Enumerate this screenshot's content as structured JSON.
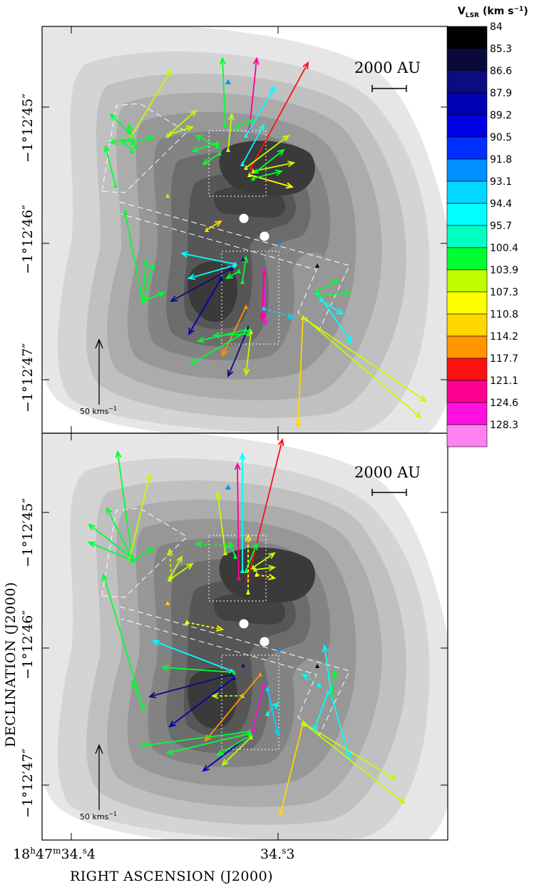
{
  "chart_data": {
    "type": "scatter",
    "description_type": "maser proper-motion vector map over grayscale dust continuum, two panels",
    "xlabel": "RIGHT ASCENSION (J2000)",
    "ylabel": "DECLINATION (J2000)",
    "x_ticks": [
      {
        "label": "18h47m34.4s",
        "main": "18",
        "sup1": "h",
        "mid": "47",
        "sup2": "m",
        "mid2": "34.",
        "sup3": "s",
        "end": "4",
        "value": 34.4
      },
      {
        "label": "34.3s",
        "main": "34.",
        "sup": "s",
        "end": "3",
        "value": 34.3
      }
    ],
    "y_ticks": [
      "−1°12′45″",
      "−1°12′46″",
      "−1°12′47″"
    ],
    "scale_bar_label": "2000 AU",
    "velocity_scale_label": "50 kms",
    "velocity_scale_sup": "−1",
    "colorbar": {
      "title": "V",
      "title_sub": "LSR",
      "title_units": "(km s",
      "title_units_sup": "−1",
      "title_units_end": ")",
      "levels": [
        "84",
        "85.3",
        "86.6",
        "87.9",
        "89.2",
        "90.5",
        "91.8",
        "93.1",
        "94.4",
        "95.7",
        "100.4",
        "103.9",
        "107.3",
        "110.8",
        "114.2",
        "117.7",
        "121.1",
        "124.6",
        "128.3"
      ],
      "colors": [
        "#000000",
        "#0a0a3a",
        "#0c0c80",
        "#0000b4",
        "#0000e6",
        "#0030ff",
        "#0090ff",
        "#00d8ff",
        "#00ffff",
        "#00ffc0",
        "#00ff30",
        "#bfff00",
        "#ffff00",
        "#ffd700",
        "#ff9600",
        "#ff1010",
        "#ff0090",
        "#ff10e0",
        "#ff80f0"
      ]
    },
    "panels": [
      {
        "name": "top",
        "vectors": [
          {
            "x0": 316,
            "y0": 175,
            "x1": 312,
            "y1": 82,
            "c": "#00ff30"
          },
          {
            "x0": 350,
            "y0": 180,
            "x1": 360,
            "y1": 82,
            "c": "#ff0090"
          },
          {
            "x0": 352,
            "y0": 235,
            "x1": 432,
            "y1": 88,
            "c": "#ff1010"
          },
          {
            "x0": 345,
            "y0": 190,
            "x1": 385,
            "y1": 122,
            "c": "#00ffff"
          },
          {
            "x0": 340,
            "y0": 230,
            "x1": 370,
            "y1": 175,
            "c": "#00ffff"
          },
          {
            "x0": 345,
            "y0": 235,
            "x1": 405,
            "y1": 190,
            "c": "#bfff00"
          },
          {
            "x0": 355,
            "y0": 240,
            "x1": 412,
            "y1": 228,
            "c": "#bfff00"
          },
          {
            "x0": 350,
            "y0": 245,
            "x1": 410,
            "y1": 262,
            "c": "#ffff00"
          },
          {
            "x0": 360,
            "y0": 240,
            "x1": 398,
            "y1": 210,
            "c": "#00ff30"
          },
          {
            "x0": 355,
            "y0": 250,
            "x1": 395,
            "y1": 240,
            "c": "#00ff30"
          },
          {
            "x0": 305,
            "y0": 200,
            "x1": 270,
            "y1": 212,
            "c": "#00ff30"
          },
          {
            "x0": 305,
            "y0": 205,
            "x1": 275,
            "y1": 190,
            "c": "#00ff30"
          },
          {
            "x0": 308,
            "y0": 215,
            "x1": 285,
            "y1": 230,
            "c": "#00ff30"
          },
          {
            "x0": 320,
            "y0": 210,
            "x1": 325,
            "y1": 160,
            "c": "#bfff00"
          },
          {
            "x0": 332,
            "y0": 178,
            "x1": 355,
            "y1": 168,
            "c": "#00ff30"
          },
          {
            "x0": 185,
            "y0": 190,
            "x1": 240,
            "y1": 98,
            "c": "#bfff00"
          },
          {
            "x0": 180,
            "y0": 185,
            "x1": 155,
            "y1": 160,
            "c": "#00ff30"
          },
          {
            "x0": 182,
            "y0": 195,
            "x1": 155,
            "y1": 200,
            "c": "#00ff30"
          },
          {
            "x0": 185,
            "y0": 200,
            "x1": 215,
            "y1": 192,
            "c": "#00ff30"
          },
          {
            "x0": 190,
            "y0": 205,
            "x1": 180,
            "y1": 175,
            "c": "#00ff30"
          },
          {
            "x0": 185,
            "y0": 212,
            "x1": 170,
            "y1": 195,
            "c": "#00ff30"
          },
          {
            "x0": 162,
            "y0": 260,
            "x1": 148,
            "y1": 205,
            "c": "#00ff30"
          },
          {
            "x0": 235,
            "y0": 190,
            "x1": 275,
            "y1": 155,
            "c": "#bfff00"
          },
          {
            "x0": 238,
            "y0": 188,
            "x1": 270,
            "y1": 178,
            "c": "#bfff00"
          },
          {
            "x0": 290,
            "y0": 322,
            "x1": 310,
            "y1": 310,
            "c": "#ffd700"
          },
          {
            "x0": 330,
            "y0": 370,
            "x1": 255,
            "y1": 355,
            "c": "#00ffff"
          },
          {
            "x0": 328,
            "y0": 372,
            "x1": 265,
            "y1": 390,
            "c": "#00ffff"
          },
          {
            "x0": 325,
            "y0": 376,
            "x1": 240,
            "y1": 422,
            "c": "#0c0c80"
          },
          {
            "x0": 200,
            "y0": 422,
            "x1": 175,
            "y1": 295,
            "c": "#00ff30"
          },
          {
            "x0": 202,
            "y0": 420,
            "x1": 215,
            "y1": 370,
            "c": "#00ff30"
          },
          {
            "x0": 205,
            "y0": 420,
            "x1": 230,
            "y1": 410,
            "c": "#00ff30"
          },
          {
            "x0": 200,
            "y0": 418,
            "x1": 205,
            "y1": 365,
            "c": "#00ff30"
          },
          {
            "x0": 310,
            "y0": 390,
            "x1": 265,
            "y1": 468,
            "c": "#0000b4"
          },
          {
            "x0": 335,
            "y0": 380,
            "x1": 318,
            "y1": 390,
            "c": "#00ff30"
          },
          {
            "x0": 340,
            "y0": 395,
            "x1": 345,
            "y1": 360,
            "c": "#00ff30"
          },
          {
            "x0": 370,
            "y0": 378,
            "x1": 372,
            "y1": 455,
            "c": "#ff10e0"
          },
          {
            "x0": 370,
            "y0": 382,
            "x1": 368,
            "y1": 448,
            "c": "#ff0090"
          },
          {
            "x0": 345,
            "y0": 430,
            "x1": 312,
            "y1": 498,
            "c": "#ff9600"
          },
          {
            "x0": 348,
            "y0": 460,
            "x1": 320,
            "y1": 527,
            "c": "#0c0c80"
          },
          {
            "x0": 350,
            "y0": 462,
            "x1": 268,
            "y1": 510,
            "c": "#00ff30"
          },
          {
            "x0": 345,
            "y0": 462,
            "x1": 278,
            "y1": 478,
            "c": "#00ff30"
          },
          {
            "x0": 352,
            "y0": 465,
            "x1": 345,
            "y1": 525,
            "c": "#bfff00"
          },
          {
            "x0": 348,
            "y0": 468,
            "x1": 300,
            "y1": 470,
            "c": "#00ff30"
          },
          {
            "x0": 425,
            "y0": 445,
            "x1": 418,
            "y1": 598,
            "c": "#ffd700"
          },
          {
            "x0": 425,
            "y0": 445,
            "x1": 597,
            "y1": 562,
            "c": "#bfff00"
          },
          {
            "x0": 430,
            "y0": 448,
            "x1": 590,
            "y1": 585,
            "c": "#bfff00"
          },
          {
            "x0": 445,
            "y0": 410,
            "x1": 493,
            "y1": 480,
            "c": "#00ffff"
          },
          {
            "x0": 445,
            "y0": 408,
            "x1": 475,
            "y1": 392,
            "c": "#00ff30"
          },
          {
            "x0": 448,
            "y0": 415,
            "x1": 490,
            "y1": 410,
            "c": "#00ff30"
          },
          {
            "x0": 450,
            "y0": 420,
            "x1": 480,
            "y1": 440,
            "c": "#00ffff"
          },
          {
            "x0": 370,
            "y0": 432,
            "x1": 412,
            "y1": 445,
            "c": "#00d8ff",
            "dash": true
          }
        ]
      },
      {
        "name": "bottom",
        "vectors": [
          {
            "x0": 316,
            "y0": 775,
            "x1": 305,
            "y1": 690,
            "c": "#bfff00"
          },
          {
            "x0": 330,
            "y0": 780,
            "x1": 322,
            "y1": 760,
            "c": "#00ff30"
          },
          {
            "x0": 340,
            "y0": 800,
            "x1": 340,
            "y1": 636,
            "c": "#00ffff"
          },
          {
            "x0": 335,
            "y0": 810,
            "x1": 333,
            "y1": 650,
            "c": "#ff0090"
          },
          {
            "x0": 348,
            "y0": 810,
            "x1": 396,
            "y1": 616,
            "c": "#ff1010"
          },
          {
            "x0": 345,
            "y0": 800,
            "x1": 360,
            "y1": 762,
            "c": "#00ff30"
          },
          {
            "x0": 348,
            "y0": 830,
            "x1": 348,
            "y1": 750,
            "c": "#ffff00",
            "dash": true
          },
          {
            "x0": 355,
            "y0": 795,
            "x1": 385,
            "y1": 775,
            "c": "#bfff00"
          },
          {
            "x0": 358,
            "y0": 798,
            "x1": 385,
            "y1": 795,
            "c": "#bfff00"
          },
          {
            "x0": 360,
            "y0": 805,
            "x1": 385,
            "y1": 810,
            "c": "#ffff00",
            "dash": true
          },
          {
            "x0": 318,
            "y0": 765,
            "x1": 275,
            "y1": 762,
            "c": "#00ff30",
            "dash": true
          },
          {
            "x0": 185,
            "y0": 780,
            "x1": 165,
            "y1": 633,
            "c": "#00ff30"
          },
          {
            "x0": 182,
            "y0": 782,
            "x1": 210,
            "y1": 665,
            "c": "#bfff00"
          },
          {
            "x0": 185,
            "y0": 785,
            "x1": 125,
            "y1": 760,
            "c": "#00ff30"
          },
          {
            "x0": 186,
            "y0": 782,
            "x1": 125,
            "y1": 735,
            "c": "#00ff30"
          },
          {
            "x0": 188,
            "y0": 785,
            "x1": 215,
            "y1": 768,
            "c": "#00ff30"
          },
          {
            "x0": 185,
            "y0": 783,
            "x1": 150,
            "y1": 712,
            "c": "#00ff30"
          },
          {
            "x0": 238,
            "y0": 810,
            "x1": 255,
            "y1": 780,
            "c": "#bfff00"
          },
          {
            "x0": 238,
            "y0": 812,
            "x1": 270,
            "y1": 790,
            "c": "#bfff00"
          },
          {
            "x0": 240,
            "y0": 808,
            "x1": 238,
            "y1": 770,
            "c": "#bfff00",
            "dash": true
          },
          {
            "x0": 262,
            "y0": 872,
            "x1": 312,
            "y1": 882,
            "c": "#ffff00",
            "dash": true
          },
          {
            "x0": 325,
            "y0": 940,
            "x1": 215,
            "y1": 898,
            "c": "#00ffff"
          },
          {
            "x0": 328,
            "y0": 942,
            "x1": 228,
            "y1": 935,
            "c": "#00ff30"
          },
          {
            "x0": 325,
            "y0": 945,
            "x1": 210,
            "y1": 976,
            "c": "#0c0c80"
          },
          {
            "x0": 200,
            "y0": 990,
            "x1": 145,
            "y1": 805,
            "c": "#00ff30"
          },
          {
            "x0": 202,
            "y0": 992,
            "x1": 185,
            "y1": 955,
            "c": "#00ff30"
          },
          {
            "x0": 328,
            "y0": 950,
            "x1": 238,
            "y1": 1018,
            "c": "#0000b4"
          },
          {
            "x0": 340,
            "y0": 975,
            "x1": 298,
            "y1": 975,
            "c": "#bfff00",
            "dash": true
          },
          {
            "x0": 365,
            "y0": 945,
            "x1": 288,
            "y1": 1038,
            "c": "#ff9600"
          },
          {
            "x0": 370,
            "y0": 960,
            "x1": 352,
            "y1": 1030,
            "c": "#ff10e0"
          },
          {
            "x0": 375,
            "y0": 1000,
            "x1": 390,
            "y1": 985,
            "c": "#00ffff",
            "dash": true
          },
          {
            "x0": 375,
            "y0": 965,
            "x1": 390,
            "y1": 1030,
            "c": "#00d8ff"
          },
          {
            "x0": 350,
            "y0": 1030,
            "x1": 285,
            "y1": 1080,
            "c": "#0000b4"
          },
          {
            "x0": 352,
            "y0": 1030,
            "x1": 305,
            "y1": 1058,
            "c": "#00ff30"
          },
          {
            "x0": 350,
            "y0": 1028,
            "x1": 235,
            "y1": 1055,
            "c": "#00ff30"
          },
          {
            "x0": 350,
            "y0": 1025,
            "x1": 198,
            "y1": 1045,
            "c": "#00ff30"
          },
          {
            "x0": 352,
            "y0": 1033,
            "x1": 312,
            "y1": 1072,
            "c": "#bfff00"
          },
          {
            "x0": 425,
            "y0": 1013,
            "x1": 393,
            "y1": 1142,
            "c": "#ffd700"
          },
          {
            "x0": 425,
            "y0": 1013,
            "x1": 555,
            "y1": 1092,
            "c": "#bfff00"
          },
          {
            "x0": 428,
            "y0": 1015,
            "x1": 567,
            "y1": 1125,
            "c": "#bfff00"
          },
          {
            "x0": 465,
            "y0": 975,
            "x1": 490,
            "y1": 1062,
            "c": "#00ffff"
          },
          {
            "x0": 460,
            "y0": 970,
            "x1": 440,
            "y1": 1025,
            "c": "#00ffff"
          },
          {
            "x0": 465,
            "y0": 975,
            "x1": 455,
            "y1": 905,
            "c": "#00ffff"
          },
          {
            "x0": 448,
            "y0": 960,
            "x1": 425,
            "y1": 945,
            "c": "#00ffff",
            "dash": true
          },
          {
            "x0": 465,
            "y0": 975,
            "x1": 470,
            "y1": 940,
            "c": "#00ff30"
          }
        ]
      }
    ]
  }
}
